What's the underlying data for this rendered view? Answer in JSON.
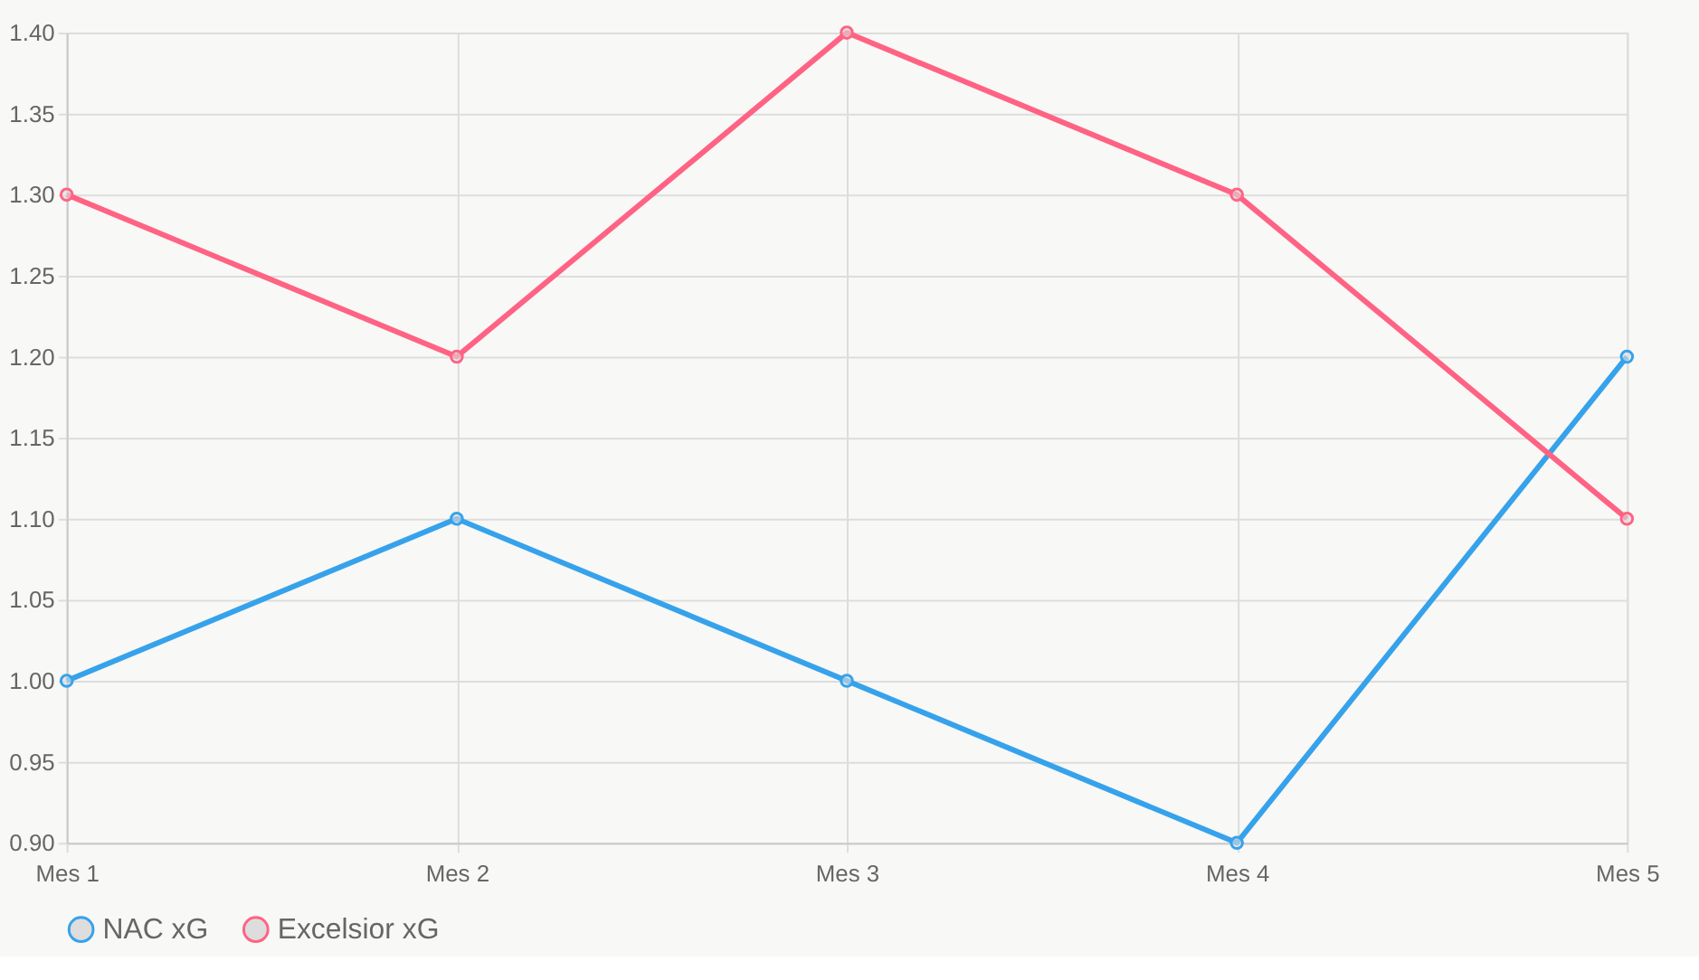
{
  "chart_data": {
    "type": "line",
    "categories": [
      "Mes 1",
      "Mes 2",
      "Mes 3",
      "Mes 4",
      "Mes 5"
    ],
    "series": [
      {
        "name": "NAC xG",
        "color": "#36a2eb",
        "values": [
          1.0,
          1.1,
          1.0,
          0.9,
          1.2
        ]
      },
      {
        "name": "Excelsior xG",
        "color": "#ff6384",
        "values": [
          1.3,
          1.2,
          1.4,
          1.3,
          1.1
        ]
      }
    ],
    "ylim": [
      0.9,
      1.4
    ],
    "yticks": [
      {
        "value": 0.9,
        "label": "0.90"
      },
      {
        "value": 0.95,
        "label": "0.95"
      },
      {
        "value": 1.0,
        "label": "1.00"
      },
      {
        "value": 1.05,
        "label": "1.05"
      },
      {
        "value": 1.1,
        "label": "1.10"
      },
      {
        "value": 1.15,
        "label": "1.15"
      },
      {
        "value": 1.2,
        "label": "1.20"
      },
      {
        "value": 1.25,
        "label": "1.25"
      },
      {
        "value": 1.3,
        "label": "1.30"
      },
      {
        "value": 1.35,
        "label": "1.35"
      },
      {
        "value": 1.4,
        "label": "1.40"
      }
    ],
    "grid": true,
    "legend": "bottom",
    "marker": "circle",
    "line_style": "solid"
  }
}
